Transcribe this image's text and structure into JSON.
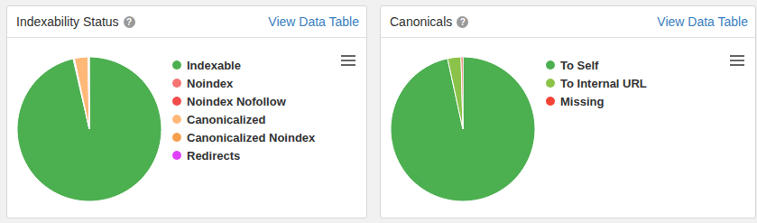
{
  "panel_link": "View Data Table",
  "help_icon": "?",
  "chart_data": [
    {
      "type": "pie",
      "title": "Indexability Status",
      "categories": [
        "Indexable",
        "Noindex",
        "Noindex Nofollow",
        "Canonicalized",
        "Canonicalized Noindex",
        "Redirects"
      ],
      "values": [
        96.4,
        0.2,
        0.1,
        3.0,
        0.2,
        0.1
      ],
      "colors": [
        "#4caf50",
        "#f47373",
        "#f44b4b",
        "#ffb877",
        "#f6a04d",
        "#e040fb"
      ],
      "legend": "right"
    },
    {
      "type": "pie",
      "title": "Canonicals",
      "categories": [
        "To Self",
        "To Internal URL",
        "Missing"
      ],
      "values": [
        96.6,
        3.0,
        0.4
      ],
      "colors": [
        "#4caf50",
        "#8bc34a",
        "#f44336"
      ],
      "legend": "right"
    }
  ]
}
